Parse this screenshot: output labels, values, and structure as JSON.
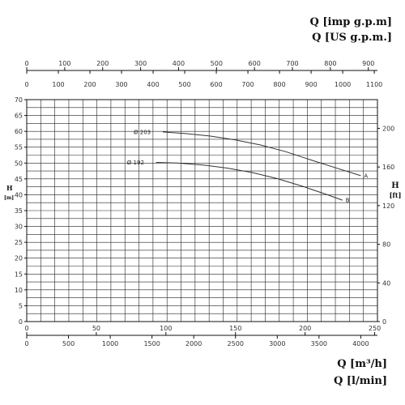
{
  "chart_data": {
    "type": "line",
    "axes": {
      "top_outer": {
        "label": "Q [imp g.p.m]",
        "ticks": [
          0,
          100,
          200,
          300,
          400,
          500,
          600,
          700,
          800,
          900
        ],
        "range": [
          0,
          924
        ]
      },
      "top_inner": {
        "label": "Q [US g.p.m.]",
        "ticks": [
          0,
          100,
          200,
          300,
          400,
          500,
          600,
          700,
          800,
          900,
          1000,
          1100
        ],
        "range": [
          0,
          1110
        ]
      },
      "left": {
        "label": "H",
        "unit": "[m]",
        "ticks": [
          0,
          5,
          10,
          15,
          20,
          25,
          30,
          35,
          40,
          45,
          50,
          55,
          60,
          65,
          70
        ],
        "range": [
          0,
          70
        ]
      },
      "right": {
        "label": "H",
        "unit": "[ft]",
        "ticks": [
          0,
          40,
          80,
          120,
          160,
          200
        ],
        "range": [
          0,
          229.7
        ]
      },
      "bottom_inner": {
        "label": "Q [m³/h]",
        "ticks": [
          0,
          50,
          100,
          150,
          200,
          250
        ],
        "range": [
          0,
          252
        ]
      },
      "bottom_outer": {
        "label": "Q [l/min]",
        "ticks": [
          0,
          500,
          1000,
          1500,
          2000,
          2500,
          3000,
          3500,
          4000
        ],
        "range": [
          0,
          4200
        ]
      }
    },
    "grid": true,
    "series": [
      {
        "name": "Ø 203",
        "end_label": "A",
        "x": [
          1630,
          1900,
          2200,
          2500,
          2800,
          3100,
          3400,
          3700,
          4000
        ],
        "y": [
          59.8,
          59.3,
          58.5,
          57.3,
          55.7,
          53.6,
          51.0,
          48.5,
          46.0
        ]
      },
      {
        "name": "Ø 192",
        "end_label": "B",
        "x": [
          1550,
          1800,
          2100,
          2400,
          2700,
          3000,
          3300,
          3600,
          3780
        ],
        "y": [
          50.2,
          50.0,
          49.4,
          48.4,
          47.0,
          45.1,
          42.7,
          40.0,
          38.3
        ]
      }
    ]
  }
}
